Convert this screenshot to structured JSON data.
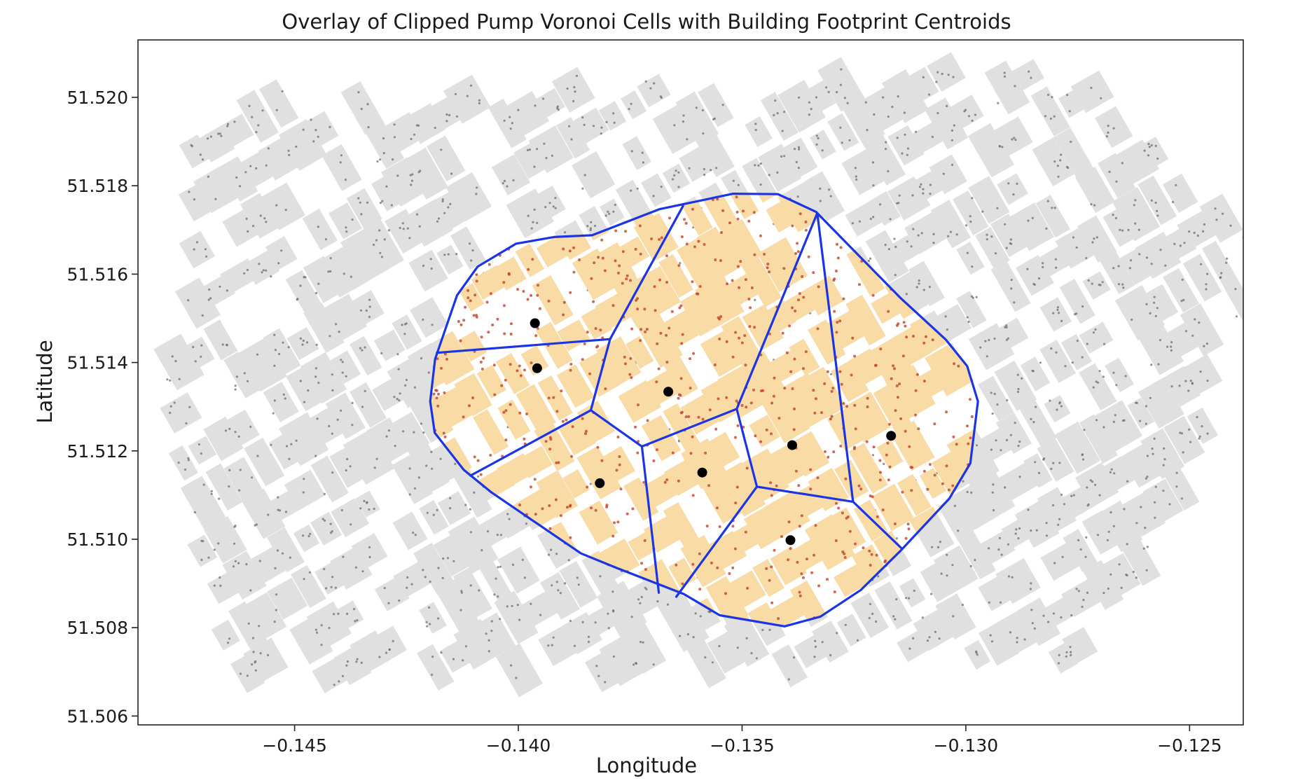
{
  "chart_data": {
    "type": "map",
    "title": "Overlay of Clipped Pump Voronoi Cells with Building Footprint Centroids",
    "xlabel": "Longitude",
    "ylabel": "Latitude",
    "xlim": [
      -0.1485,
      -0.1238
    ],
    "ylim": [
      51.5058,
      51.5213
    ],
    "x_ticks": [
      -0.145,
      -0.14,
      -0.135,
      -0.13,
      -0.125
    ],
    "x_tick_labels": [
      "−0.145",
      "−0.140",
      "−0.135",
      "−0.130",
      "−0.125"
    ],
    "y_ticks": [
      51.506,
      51.508,
      51.51,
      51.512,
      51.514,
      51.516,
      51.518,
      51.52
    ],
    "y_tick_labels": [
      "51.506",
      "51.508",
      "51.510",
      "51.512",
      "51.514",
      "51.516",
      "51.518",
      "51.520"
    ],
    "grid": false,
    "layers": {
      "building_footprints": {
        "color": "#e0e0e0",
        "centroid_color": "#6e6e6e"
      },
      "clipped_buildings": {
        "color": "#f9dba6",
        "centroid_color": "#c0432b"
      },
      "voronoi_cells": {
        "color": "#1a34e6"
      },
      "pumps": {
        "color": "#000000"
      }
    },
    "pumps": [
      {
        "x": -0.13963,
        "y": 51.51489
      },
      {
        "x": -0.13958,
        "y": 51.51387
      },
      {
        "x": -0.13665,
        "y": 51.51334
      },
      {
        "x": -0.13388,
        "y": 51.51213
      },
      {
        "x": -0.13167,
        "y": 51.51234
      },
      {
        "x": -0.13589,
        "y": 51.51151
      },
      {
        "x": -0.13818,
        "y": 51.51127
      },
      {
        "x": -0.13392,
        "y": 51.50998
      }
    ],
    "hull": [
      [
        -0.13835,
        51.51688
      ],
      [
        -0.13685,
        51.51747
      ],
      [
        -0.1352,
        51.51782
      ],
      [
        -0.1342,
        51.51781
      ],
      [
        -0.13335,
        51.51741
      ],
      [
        -0.13245,
        51.51648
      ],
      [
        -0.13145,
        51.51545
      ],
      [
        -0.13045,
        51.51452
      ],
      [
        -0.12997,
        51.51392
      ],
      [
        -0.12973,
        51.51312
      ],
      [
        -0.1299,
        51.51172
      ],
      [
        -0.13037,
        51.51092
      ],
      [
        -0.13145,
        51.50975
      ],
      [
        -0.13235,
        51.50885
      ],
      [
        -0.13325,
        51.50825
      ],
      [
        -0.13405,
        51.50803
      ],
      [
        -0.1355,
        51.50828
      ],
      [
        -0.1363,
        51.50876
      ],
      [
        -0.1378,
        51.50935
      ],
      [
        -0.1386,
        51.50968
      ],
      [
        -0.1406,
        51.51106
      ],
      [
        -0.14122,
        51.51157
      ],
      [
        -0.14187,
        51.51241
      ],
      [
        -0.14197,
        51.51312
      ],
      [
        -0.14186,
        51.51408
      ],
      [
        -0.14137,
        51.51552
      ],
      [
        -0.14091,
        51.51617
      ],
      [
        -0.14005,
        51.51669
      ],
      [
        -0.1392,
        51.51684
      ]
    ],
    "voronoi_edges": [
      [
        [
          -0.14182,
          51.51422
        ],
        [
          -0.13795,
          51.51453
        ]
      ],
      [
        [
          -0.13795,
          51.51453
        ],
        [
          -0.13632,
          51.51754
        ]
      ],
      [
        [
          -0.13795,
          51.51453
        ],
        [
          -0.13838,
          51.51292
        ]
      ],
      [
        [
          -0.13838,
          51.51292
        ],
        [
          -0.14107,
          51.51144
        ]
      ],
      [
        [
          -0.13838,
          51.51292
        ],
        [
          -0.13724,
          51.5121
        ]
      ],
      [
        [
          -0.13724,
          51.5121
        ],
        [
          -0.13512,
          51.51295
        ]
      ],
      [
        [
          -0.13724,
          51.5121
        ],
        [
          -0.13686,
          51.50879
        ]
      ],
      [
        [
          -0.13512,
          51.51295
        ],
        [
          -0.13332,
          51.51738
        ]
      ],
      [
        [
          -0.13512,
          51.51295
        ],
        [
          -0.13467,
          51.51119
        ]
      ],
      [
        [
          -0.13467,
          51.51119
        ],
        [
          -0.13647,
          51.5087
        ]
      ],
      [
        [
          -0.13467,
          51.51119
        ],
        [
          -0.13252,
          51.51085
        ]
      ],
      [
        [
          -0.13252,
          51.51085
        ],
        [
          -0.13332,
          51.51738
        ]
      ],
      [
        [
          -0.13252,
          51.51085
        ],
        [
          -0.13142,
          51.50978
        ]
      ]
    ]
  }
}
